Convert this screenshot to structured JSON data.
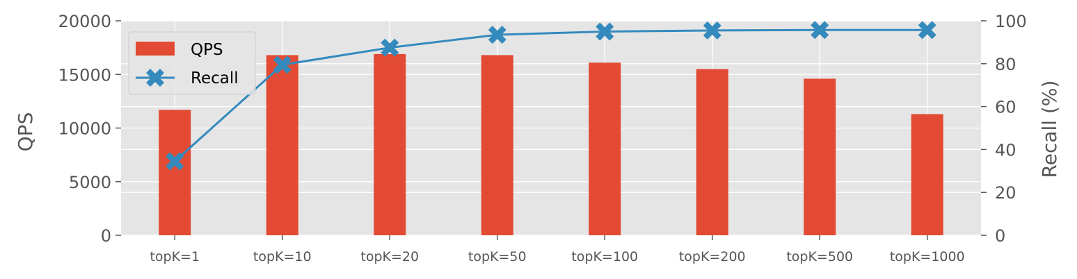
{
  "chart_data": {
    "type": "bar",
    "categories": [
      "topK=1",
      "topK=10",
      "topK=20",
      "topK=50",
      "topK=100",
      "topK=200",
      "topK=500",
      "topK=1000"
    ],
    "series": [
      {
        "name": "QPS",
        "type": "bar",
        "axis": "left",
        "color": "#E24A33",
        "values": [
          11700,
          16800,
          16900,
          16800,
          16100,
          15500,
          14600,
          11300
        ]
      },
      {
        "name": "Recall",
        "type": "line",
        "axis": "right",
        "color": "#348ABD",
        "marker": "X",
        "values": [
          34.5,
          79.5,
          87.5,
          93.5,
          95.0,
          95.5,
          95.7,
          95.7
        ]
      }
    ],
    "ylabel": "QPS",
    "ylabel_right": "Recall (%)",
    "ylim": [
      0,
      20000
    ],
    "ylim_right": [
      0,
      100
    ],
    "yticks": [
      "0",
      "5000",
      "10000",
      "15000",
      "20000"
    ],
    "yticks_right": [
      "0",
      "20",
      "40",
      "60",
      "80",
      "100"
    ],
    "grid": true,
    "background": "#E5E5E5",
    "legend_position": "upper-left",
    "legend": [
      "QPS",
      "Recall"
    ]
  }
}
